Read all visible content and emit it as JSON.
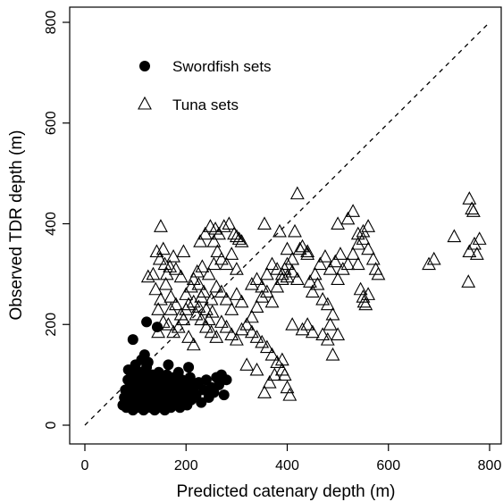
{
  "chart_data": {
    "type": "scatter",
    "xlabel": "Predicted catenary depth (m)",
    "ylabel": "Observed TDR depth (m)",
    "xlim": [
      0,
      800
    ],
    "ylim": [
      0,
      800
    ],
    "xticks": [
      "0",
      "200",
      "400",
      "600",
      "800"
    ],
    "yticks": [
      "0",
      "200",
      "400",
      "600",
      "800"
    ],
    "reference_line": {
      "style": "dashed",
      "from": [
        0,
        0
      ],
      "to": [
        800,
        800
      ]
    },
    "legend_position": "top-left",
    "grid": false,
    "series": [
      {
        "name": "Swordfish sets",
        "marker": "filled-circle",
        "color": "#000000",
        "points": [
          [
            75,
            40
          ],
          [
            78,
            55
          ],
          [
            80,
            70
          ],
          [
            82,
            35
          ],
          [
            85,
            90
          ],
          [
            86,
            110
          ],
          [
            88,
            60
          ],
          [
            90,
            45
          ],
          [
            92,
            80
          ],
          [
            94,
            100
          ],
          [
            95,
            30
          ],
          [
            96,
            65
          ],
          [
            98,
            50
          ],
          [
            100,
            120
          ],
          [
            100,
            85
          ],
          [
            102,
            40
          ],
          [
            104,
            70
          ],
          [
            105,
            95
          ],
          [
            106,
            55
          ],
          [
            108,
            35
          ],
          [
            110,
            75
          ],
          [
            110,
            105
          ],
          [
            112,
            60
          ],
          [
            114,
            45
          ],
          [
            115,
            90
          ],
          [
            116,
            30
          ],
          [
            118,
            80
          ],
          [
            120,
            50
          ],
          [
            120,
            65
          ],
          [
            122,
            115
          ],
          [
            124,
            40
          ],
          [
            125,
            70
          ],
          [
            126,
            95
          ],
          [
            128,
            55
          ],
          [
            130,
            35
          ],
          [
            130,
            85
          ],
          [
            132,
            60
          ],
          [
            134,
            100
          ],
          [
            135,
            45
          ],
          [
            136,
            75
          ],
          [
            138,
            30
          ],
          [
            140,
            90
          ],
          [
            140,
            55
          ],
          [
            142,
            65
          ],
          [
            144,
            40
          ],
          [
            145,
            80
          ],
          [
            146,
            105
          ],
          [
            148,
            50
          ],
          [
            150,
            35
          ],
          [
            150,
            70
          ],
          [
            152,
            95
          ],
          [
            154,
            60
          ],
          [
            155,
            45
          ],
          [
            156,
            85
          ],
          [
            158,
            30
          ],
          [
            160,
            75
          ],
          [
            160,
            55
          ],
          [
            162,
            100
          ],
          [
            164,
            40
          ],
          [
            165,
            65
          ],
          [
            166,
            90
          ],
          [
            168,
            50
          ],
          [
            170,
            35
          ],
          [
            170,
            80
          ],
          [
            172,
            60
          ],
          [
            174,
            45
          ],
          [
            175,
            70
          ],
          [
            176,
            95
          ],
          [
            178,
            55
          ],
          [
            180,
            40
          ],
          [
            182,
            85
          ],
          [
            184,
            65
          ],
          [
            185,
            50
          ],
          [
            186,
            75
          ],
          [
            188,
            35
          ],
          [
            190,
            60
          ],
          [
            192,
            90
          ],
          [
            194,
            45
          ],
          [
            195,
            70
          ],
          [
            198,
            55
          ],
          [
            200,
            80
          ],
          [
            202,
            40
          ],
          [
            205,
            65
          ],
          [
            208,
            95
          ],
          [
            210,
            50
          ],
          [
            215,
            75
          ],
          [
            220,
            60
          ],
          [
            225,
            85
          ],
          [
            230,
            45
          ],
          [
            235,
            70
          ],
          [
            240,
            90
          ],
          [
            245,
            55
          ],
          [
            250,
            75
          ],
          [
            255,
            65
          ],
          [
            260,
            95
          ],
          [
            265,
            80
          ],
          [
            270,
            100
          ],
          [
            275,
            60
          ],
          [
            280,
            90
          ],
          [
            90,
            85
          ],
          [
            100,
            100
          ],
          [
            110,
            60
          ],
          [
            115,
            50
          ],
          [
            125,
            40
          ],
          [
            135,
            55
          ],
          [
            145,
            65
          ],
          [
            155,
            75
          ],
          [
            165,
            45
          ],
          [
            175,
            60
          ],
          [
            185,
            55
          ],
          [
            95,
            75
          ],
          [
            105,
            65
          ],
          [
            115,
            70
          ],
          [
            125,
            80
          ],
          [
            135,
            70
          ],
          [
            145,
            60
          ],
          [
            80,
            50
          ],
          [
            85,
            60
          ],
          [
            120,
            85
          ],
          [
            130,
            65
          ],
          [
            140,
            75
          ],
          [
            150,
            65
          ],
          [
            160,
            70
          ],
          [
            170,
            65
          ],
          [
            180,
            70
          ],
          [
            190,
            75
          ],
          [
            200,
            70
          ],
          [
            210,
            75
          ],
          [
            220,
            80
          ],
          [
            150,
            50
          ],
          [
            98,
            95
          ],
          [
            112,
            130
          ],
          [
            125,
            125
          ],
          [
            165,
            120
          ],
          [
            185,
            105
          ],
          [
            205,
            115
          ],
          [
            118,
            140
          ],
          [
            95,
            170
          ],
          [
            122,
            205
          ],
          [
            143,
            195
          ],
          [
            128,
            80
          ],
          [
            132,
            45
          ],
          [
            142,
            95
          ],
          [
            148,
            85
          ],
          [
            158,
            45
          ],
          [
            168,
            60
          ],
          [
            178,
            40
          ],
          [
            188,
            50
          ],
          [
            118,
            100
          ],
          [
            106,
            80
          ]
        ]
      },
      {
        "name": "Tuna sets",
        "marker": "open-triangle",
        "color": "#000000",
        "points": [
          [
            150,
            395
          ],
          [
            142,
            345
          ],
          [
            148,
            330
          ],
          [
            155,
            350
          ],
          [
            162,
            300
          ],
          [
            158,
            320
          ],
          [
            168,
            315
          ],
          [
            175,
            335
          ],
          [
            180,
            310
          ],
          [
            190,
            295
          ],
          [
            195,
            345
          ],
          [
            140,
            270
          ],
          [
            150,
            250
          ],
          [
            160,
            280
          ],
          [
            170,
            255
          ],
          [
            180,
            240
          ],
          [
            190,
            220
          ],
          [
            200,
            230
          ],
          [
            145,
            230
          ],
          [
            155,
            205
          ],
          [
            165,
            200
          ],
          [
            175,
            185
          ],
          [
            185,
            195
          ],
          [
            195,
            210
          ],
          [
            205,
            175
          ],
          [
            215,
            160
          ],
          [
            145,
            185
          ],
          [
            135,
            300
          ],
          [
            125,
            295
          ],
          [
            170,
            230
          ],
          [
            225,
            280
          ],
          [
            230,
            255
          ],
          [
            240,
            230
          ],
          [
            250,
            250
          ],
          [
            260,
            275
          ],
          [
            270,
            265
          ],
          [
            280,
            250
          ],
          [
            290,
            230
          ],
          [
            300,
            260
          ],
          [
            310,
            245
          ],
          [
            220,
            220
          ],
          [
            230,
            210
          ],
          [
            240,
            195
          ],
          [
            250,
            185
          ],
          [
            260,
            175
          ],
          [
            270,
            205
          ],
          [
            280,
            195
          ],
          [
            290,
            180
          ],
          [
            300,
            170
          ],
          [
            310,
            190
          ],
          [
            255,
            365
          ],
          [
            265,
            380
          ],
          [
            275,
            395
          ],
          [
            285,
            400
          ],
          [
            295,
            380
          ],
          [
            305,
            370
          ],
          [
            270,
            330
          ],
          [
            280,
            320
          ],
          [
            290,
            340
          ],
          [
            300,
            310
          ],
          [
            320,
            200
          ],
          [
            330,
            215
          ],
          [
            340,
            235
          ],
          [
            350,
            255
          ],
          [
            360,
            265
          ],
          [
            370,
            245
          ],
          [
            380,
            275
          ],
          [
            390,
            290
          ],
          [
            395,
            310
          ],
          [
            400,
            295
          ],
          [
            330,
            280
          ],
          [
            340,
            290
          ],
          [
            350,
            275
          ],
          [
            360,
            300
          ],
          [
            370,
            320
          ],
          [
            380,
            310
          ],
          [
            390,
            300
          ],
          [
            400,
            320
          ],
          [
            410,
            305
          ],
          [
            420,
            290
          ],
          [
            355,
            400
          ],
          [
            385,
            385
          ],
          [
            400,
            350
          ],
          [
            410,
            330
          ],
          [
            420,
            460
          ],
          [
            430,
            355
          ],
          [
            440,
            345
          ],
          [
            445,
            285
          ],
          [
            450,
            265
          ],
          [
            460,
            280
          ],
          [
            330,
            185
          ],
          [
            340,
            175
          ],
          [
            350,
            165
          ],
          [
            360,
            155
          ],
          [
            370,
            140
          ],
          [
            380,
            125
          ],
          [
            390,
            110
          ],
          [
            395,
            100
          ],
          [
            400,
            75
          ],
          [
            405,
            60
          ],
          [
            320,
            120
          ],
          [
            340,
            110
          ],
          [
            355,
            65
          ],
          [
            365,
            85
          ],
          [
            375,
            100
          ],
          [
            390,
            130
          ],
          [
            410,
            200
          ],
          [
            430,
            190
          ],
          [
            440,
            200
          ],
          [
            450,
            185
          ],
          [
            470,
            180
          ],
          [
            480,
            170
          ],
          [
            490,
            140
          ],
          [
            500,
            290
          ],
          [
            510,
            310
          ],
          [
            520,
            320
          ],
          [
            530,
            340
          ],
          [
            540,
            360
          ],
          [
            550,
            385
          ],
          [
            560,
            395
          ],
          [
            500,
            400
          ],
          [
            520,
            410
          ],
          [
            530,
            425
          ],
          [
            540,
            380
          ],
          [
            550,
            370
          ],
          [
            560,
            350
          ],
          [
            570,
            330
          ],
          [
            575,
            310
          ],
          [
            580,
            300
          ],
          [
            540,
            320
          ],
          [
            545,
            270
          ],
          [
            550,
            255
          ],
          [
            552,
            245
          ],
          [
            555,
            240
          ],
          [
            560,
            260
          ],
          [
            490,
            220
          ],
          [
            480,
            240
          ],
          [
            470,
            250
          ],
          [
            485,
            200
          ],
          [
            500,
            180
          ],
          [
            680,
            320
          ],
          [
            690,
            330
          ],
          [
            730,
            375
          ],
          [
            760,
            450
          ],
          [
            765,
            430
          ],
          [
            768,
            425
          ],
          [
            770,
            360
          ],
          [
            775,
            340
          ],
          [
            780,
            370
          ],
          [
            758,
            285
          ],
          [
            760,
            345
          ],
          [
            440,
            340
          ],
          [
            425,
            350
          ],
          [
            415,
            385
          ],
          [
            455,
            300
          ],
          [
            465,
            320
          ],
          [
            475,
            335
          ],
          [
            485,
            310
          ],
          [
            495,
            325
          ],
          [
            505,
            340
          ],
          [
            215,
            290
          ],
          [
            222,
            305
          ],
          [
            232,
            315
          ],
          [
            245,
            300
          ],
          [
            255,
            320
          ],
          [
            262,
            345
          ],
          [
            228,
            365
          ],
          [
            238,
            380
          ],
          [
            248,
            395
          ],
          [
            258,
            390
          ],
          [
            300,
            375
          ],
          [
            310,
            365
          ],
          [
            210,
            275
          ],
          [
            200,
            260
          ],
          [
            205,
            240
          ],
          [
            215,
            245
          ],
          [
            225,
            235
          ],
          [
            235,
            265
          ],
          [
            245,
            210
          ],
          [
            252,
            225
          ]
        ]
      }
    ]
  }
}
